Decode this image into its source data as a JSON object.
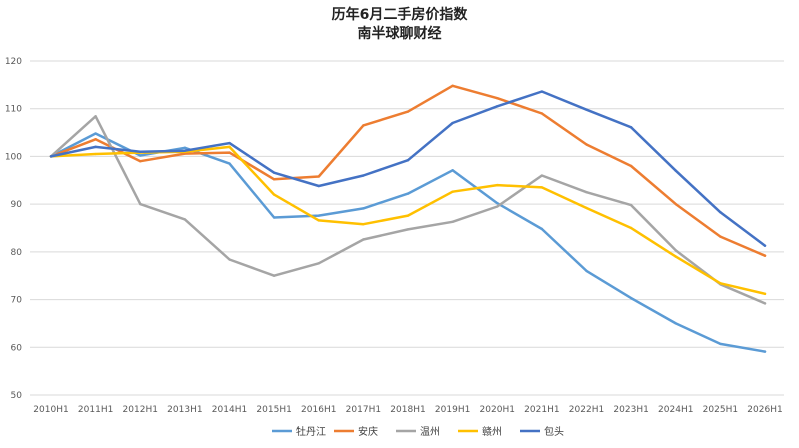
{
  "chart_data": {
    "type": "line",
    "title": "历年6月二手房价指数",
    "subtitle": "南半球聊财经",
    "categories": [
      "2010H1",
      "2011H1",
      "2012H1",
      "2013H1",
      "2014H1",
      "2015H1",
      "2016H1",
      "2017H1",
      "2018H1",
      "2019H1",
      "2020H1",
      "2021H1",
      "2022H1",
      "2023H1",
      "2024H1",
      "2025H1",
      "2026H1"
    ],
    "y_ticks": [
      "50",
      "60",
      "70",
      "80",
      "90",
      "100",
      "110",
      "120"
    ],
    "ylim": [
      50,
      120
    ],
    "grid": true,
    "legend_position": "bottom",
    "series": [
      {
        "name": "牡丹江",
        "color": "#5b9bd5",
        "values": [
          100,
          104.8,
          100.2,
          101.8,
          98.5,
          87.2,
          87.6,
          89.1,
          92.2,
          97.1,
          90.2,
          84.8,
          76.0,
          70.3,
          65.0,
          60.7,
          59.1
        ]
      },
      {
        "name": "安庆",
        "color": "#ed7d31",
        "values": [
          100,
          103.6,
          99.0,
          100.6,
          100.8,
          95.2,
          95.8,
          106.5,
          109.4,
          114.8,
          112.2,
          109.0,
          102.5,
          98.0,
          90.0,
          83.2,
          79.2
        ]
      },
      {
        "name": "温州",
        "color": "#a5a5a5",
        "values": [
          100,
          108.4,
          90.0,
          86.8,
          78.4,
          75.0,
          77.6,
          82.6,
          84.7,
          86.3,
          89.5,
          96.0,
          92.5,
          89.8,
          80.3,
          73.2,
          69.2
        ]
      },
      {
        "name": "赣州",
        "color": "#ffc000",
        "values": [
          100,
          100.5,
          100.8,
          101.0,
          102.0,
          92.0,
          86.6,
          85.8,
          87.6,
          92.6,
          94.0,
          93.5,
          89.2,
          85.0,
          79.0,
          73.4,
          71.2
        ]
      },
      {
        "name": "包头",
        "color": "#4472c4",
        "values": [
          100,
          102.0,
          101.0,
          101.2,
          102.8,
          96.6,
          93.8,
          96.0,
          99.2,
          107.0,
          110.5,
          113.6,
          109.8,
          106.1,
          97.0,
          88.3,
          81.3
        ]
      }
    ]
  }
}
